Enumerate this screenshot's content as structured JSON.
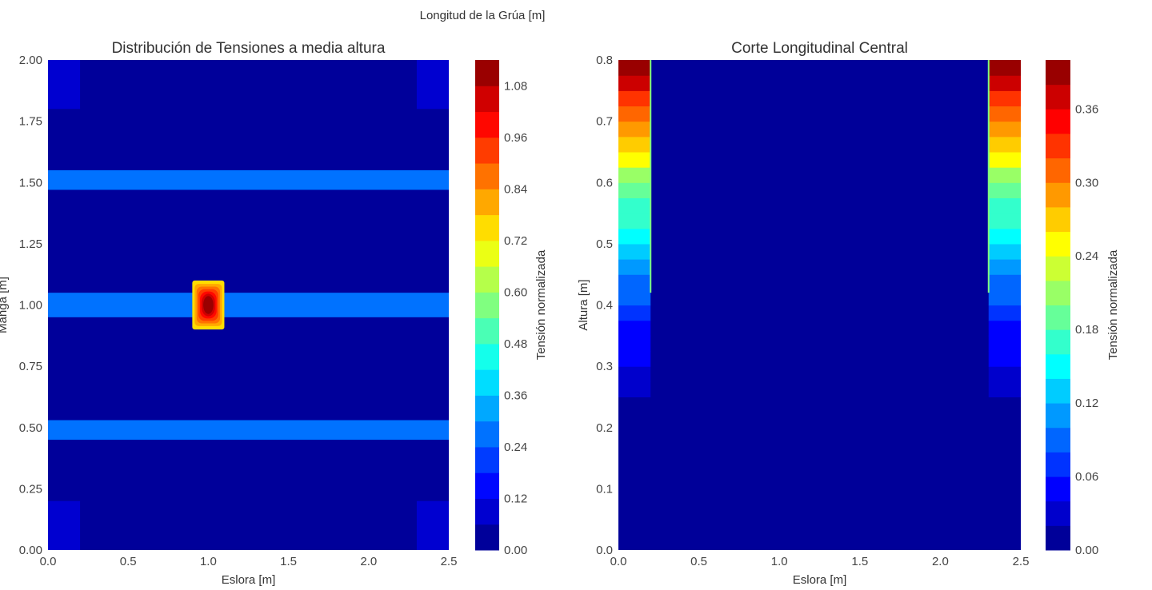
{
  "figure": {
    "suptitle_partial": "Longitud de la Grúa [m]"
  },
  "chart_data": [
    {
      "type": "heatmap",
      "title": "Distribución de Tensiones a media altura",
      "xlabel": "Eslora [m]",
      "ylabel": "Manga [m]",
      "xlim": [
        0.0,
        2.5
      ],
      "ylim": [
        0.0,
        2.0
      ],
      "xticks": [
        "0.0",
        "0.5",
        "1.0",
        "1.5",
        "2.0",
        "2.5"
      ],
      "yticks": [
        "0.00",
        "0.25",
        "0.50",
        "0.75",
        "1.00",
        "1.25",
        "1.50",
        "1.75",
        "2.00"
      ],
      "background_value": 0.02,
      "regions": [
        {
          "label": "corner-bottom-left",
          "x": [
            0.0,
            0.2
          ],
          "y": [
            0.0,
            0.2
          ],
          "value": 0.1
        },
        {
          "label": "corner-bottom-right",
          "x": [
            2.3,
            2.5
          ],
          "y": [
            0.0,
            0.2
          ],
          "value": 0.1
        },
        {
          "label": "corner-top-left",
          "x": [
            0.0,
            0.2
          ],
          "y": [
            1.8,
            2.0
          ],
          "value": 0.1
        },
        {
          "label": "corner-top-right",
          "x": [
            2.3,
            2.5
          ],
          "y": [
            1.8,
            2.0
          ],
          "value": 0.1
        },
        {
          "label": "band-y-0.5",
          "x": [
            0.0,
            2.5
          ],
          "y": [
            0.45,
            0.53
          ],
          "value": 0.27
        },
        {
          "label": "band-y-1.0",
          "x": [
            0.0,
            2.5
          ],
          "y": [
            0.95,
            1.05
          ],
          "value": 0.27
        },
        {
          "label": "band-y-1.5",
          "x": [
            0.0,
            2.5
          ],
          "y": [
            1.47,
            1.55
          ],
          "value": 0.27
        }
      ],
      "hotspot": {
        "x": 1.0,
        "y": 1.0,
        "peak_value": 1.12,
        "half_width_x": 0.1,
        "half_width_y": 0.1
      },
      "colorbar": {
        "label": "Tensión normalizada",
        "min": 0.0,
        "max": 1.14,
        "levels": 19,
        "ticks": [
          "0.00",
          "0.12",
          "0.24",
          "0.36",
          "0.48",
          "0.60",
          "0.72",
          "0.84",
          "0.96",
          "1.08"
        ]
      },
      "colormap": "jet",
      "grid": false
    },
    {
      "type": "heatmap",
      "title": "Corte Longitudinal Central",
      "xlabel": "Eslora [m]",
      "ylabel": "Altura [m]",
      "xlim": [
        0.0,
        2.5
      ],
      "ylim": [
        0.0,
        0.8
      ],
      "xticks": [
        "0.0",
        "0.5",
        "1.0",
        "1.5",
        "2.0",
        "2.5"
      ],
      "yticks": [
        "0.0",
        "0.1",
        "0.2",
        "0.3",
        "0.4",
        "0.5",
        "0.6",
        "0.7",
        "0.8"
      ],
      "background_value": 0.01,
      "wall_regions": [
        {
          "label": "left-wall",
          "x": [
            0.0,
            0.2
          ]
        },
        {
          "label": "right-wall",
          "x": [
            2.3,
            2.5
          ]
        }
      ],
      "wall_profile": {
        "y_start": 0.25,
        "y_end": 0.8,
        "value_at_start": 0.03,
        "value_at_end": 0.4,
        "exponent": 1.6
      },
      "colorbar": {
        "label": "Tensión normalizada",
        "min": 0.0,
        "max": 0.4,
        "levels": 20,
        "ticks": [
          "0.00",
          "0.06",
          "0.12",
          "0.18",
          "0.24",
          "0.30",
          "0.36"
        ]
      },
      "colormap": "jet",
      "grid": false
    }
  ]
}
